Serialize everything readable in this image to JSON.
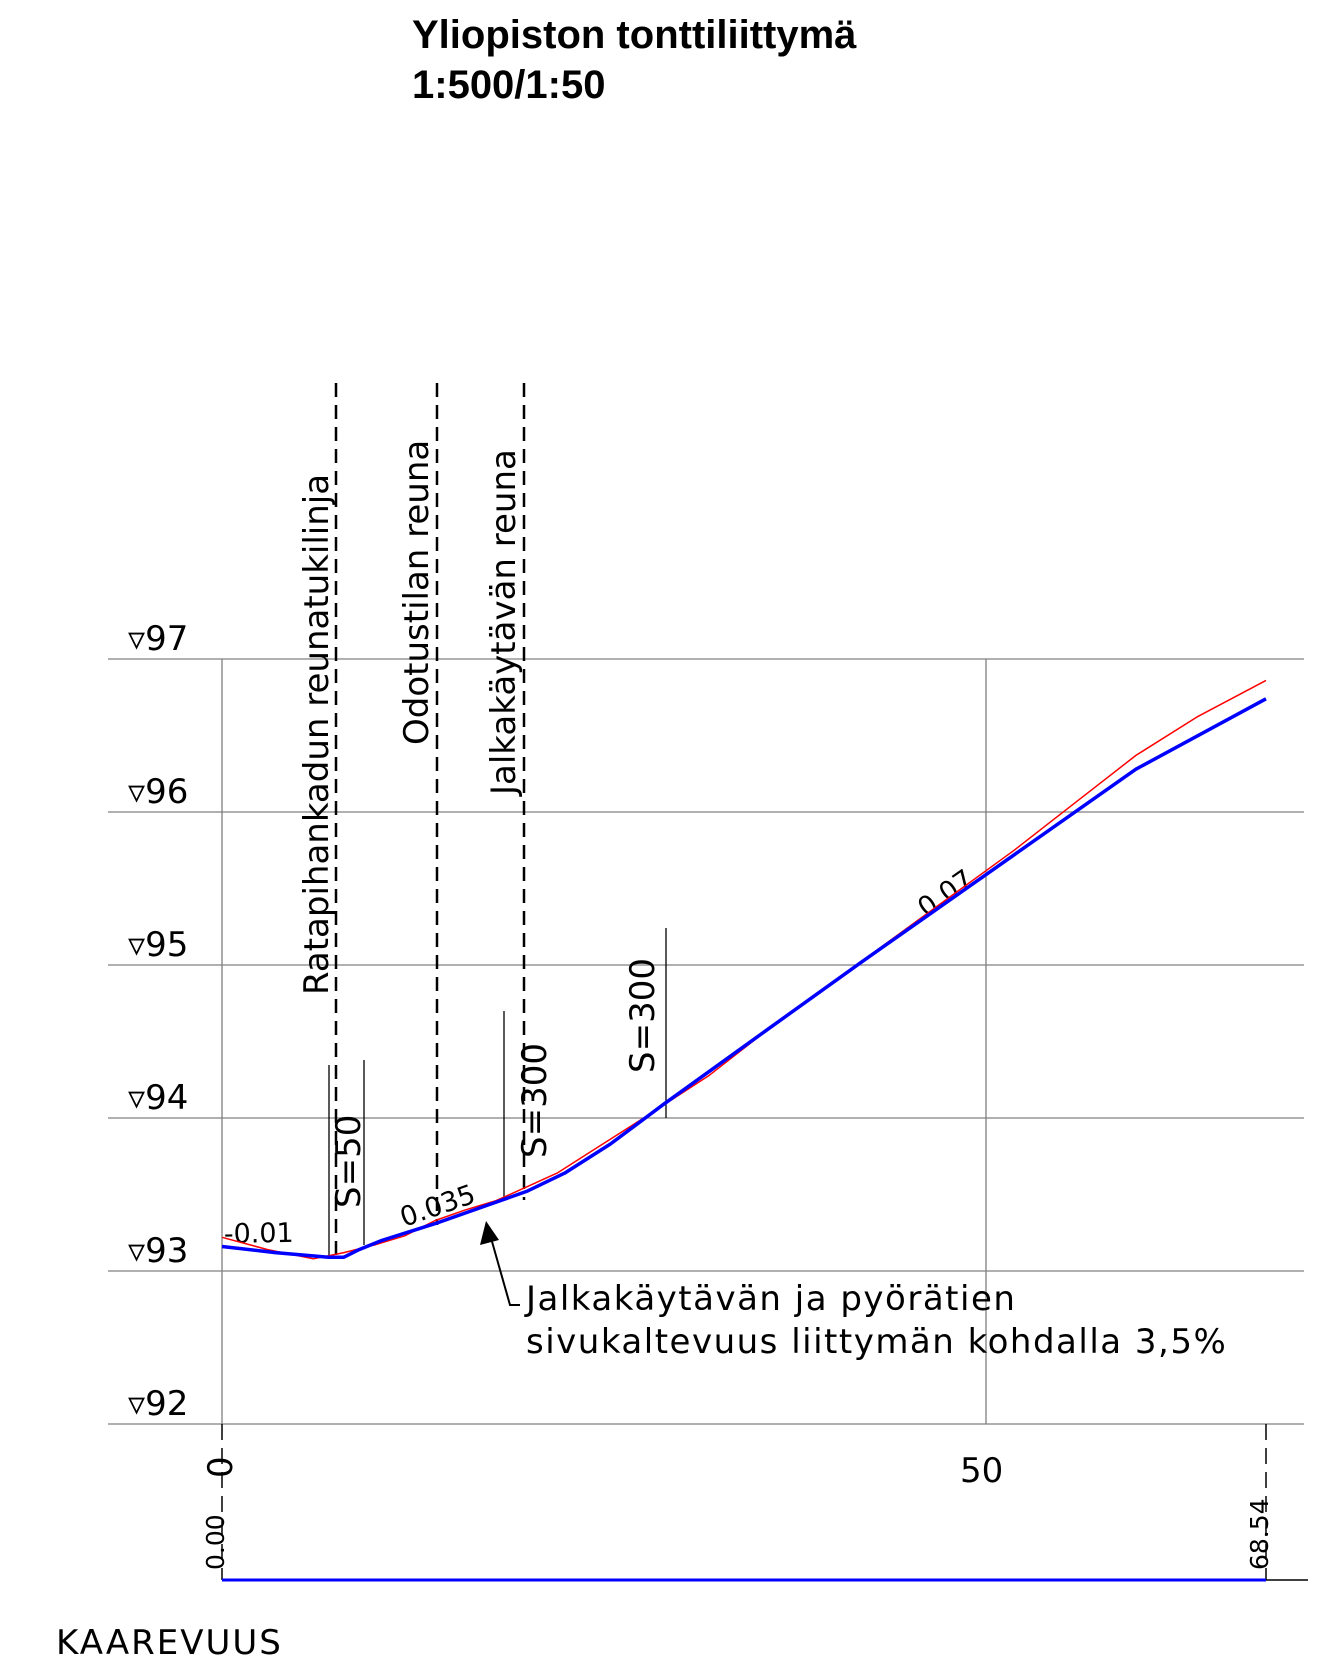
{
  "title": "Yliopiston tonttiliittymä",
  "scale": "1:500/1:50",
  "elevation_labels": [
    "▿97",
    "▿96",
    "▿95",
    "▿94",
    "▿93",
    "▿92"
  ],
  "vertical_labels": {
    "line1": "Ratapihankadun reunatukilinja",
    "line2": "Odotustilan reuna",
    "line3": "Jalkakäytävän reuna"
  },
  "curve_labels": [
    "S=50",
    "S=300",
    "S=300"
  ],
  "slope_labels": [
    "-0.01",
    "0.035",
    "0.07"
  ],
  "annotation": {
    "line1": "Jalkakäytävän ja pyörätien",
    "line2": "sivukaltevuus liittymän kohdalla 3,5%"
  },
  "station_labels": {
    "zero": "0",
    "fifty": "50",
    "start": "0.00",
    "end": "68.54"
  },
  "footer_label": "KAAREVUUS",
  "colors": {
    "design": "#0000ff",
    "ground": "#ff0000",
    "grid": "#808080",
    "ink": "#000000"
  },
  "chart_data": {
    "type": "line",
    "title": "Yliopiston tonttiliittymä",
    "subtitle": "1:500/1:50",
    "xlabel": "",
    "ylabel": "",
    "xlim": [
      0,
      68.54
    ],
    "ylim": [
      92,
      97
    ],
    "x_ticks": [
      0,
      50
    ],
    "y_ticks": [
      92,
      93,
      94,
      95,
      96,
      97
    ],
    "grid": true,
    "series": [
      {
        "color": "#0000ff",
        "points": [
          [
            0,
            93.16
          ],
          [
            3.5,
            93.12
          ],
          [
            7.0,
            93.09
          ],
          [
            8.0,
            93.09
          ],
          [
            9.0,
            93.14
          ],
          [
            10.5,
            93.2
          ],
          [
            14.0,
            93.31
          ],
          [
            18.0,
            93.45
          ],
          [
            20.0,
            93.52
          ],
          [
            22.5,
            93.64
          ],
          [
            25.5,
            93.83
          ],
          [
            29.0,
            94.09
          ],
          [
            35.0,
            94.52
          ],
          [
            42.0,
            95.02
          ],
          [
            50.0,
            95.58
          ],
          [
            60.0,
            96.28
          ],
          [
            68.54,
            96.74
          ]
        ]
      },
      {
        "color": "#ff0000",
        "points": [
          [
            0,
            93.22
          ],
          [
            3.0,
            93.14
          ],
          [
            6.0,
            93.08
          ],
          [
            8.0,
            93.12
          ],
          [
            10.0,
            93.17
          ],
          [
            12.0,
            93.23
          ],
          [
            14.0,
            93.33
          ],
          [
            16.0,
            93.4
          ],
          [
            18.0,
            93.46
          ],
          [
            20.0,
            93.55
          ],
          [
            22.0,
            93.64
          ],
          [
            25.0,
            93.83
          ],
          [
            28.0,
            94.02
          ],
          [
            32.0,
            94.28
          ],
          [
            36.0,
            94.59
          ],
          [
            40.0,
            94.88
          ],
          [
            44.0,
            95.17
          ],
          [
            48.0,
            95.46
          ],
          [
            52.0,
            95.75
          ],
          [
            56.0,
            96.06
          ],
          [
            60.0,
            96.37
          ],
          [
            64.0,
            96.62
          ],
          [
            68.54,
            96.86
          ]
        ]
      }
    ]
  }
}
